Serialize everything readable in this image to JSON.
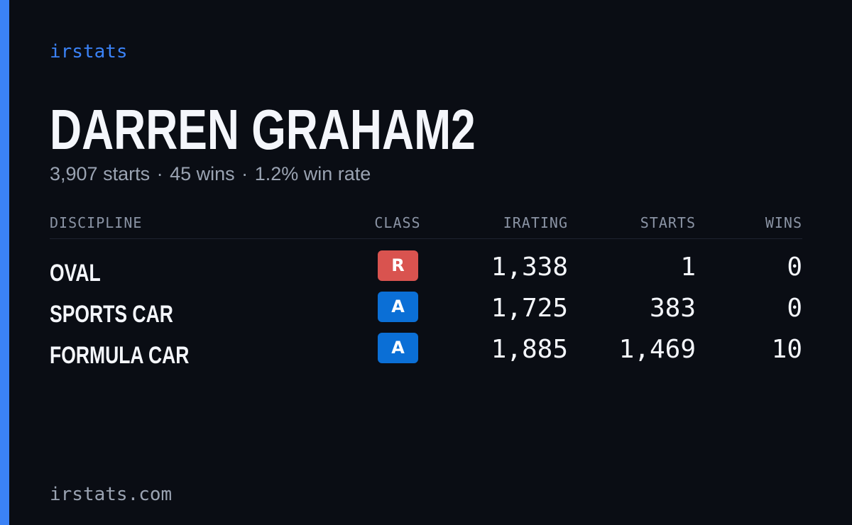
{
  "brand": "irstats",
  "driver": {
    "name": "DARREN GRAHAM2",
    "starts_text": "3,907 starts",
    "wins_text": "45 wins",
    "win_rate_text": "1.2% win rate",
    "separator": "·"
  },
  "table": {
    "headers": {
      "discipline": "DISCIPLINE",
      "class": "CLASS",
      "irating": "IRATING",
      "starts": "STARTS",
      "wins": "WINS"
    },
    "rows": [
      {
        "discipline": "OVAL",
        "class": "R",
        "class_color": "#d9534f",
        "irating": "1,338",
        "starts": "1",
        "wins": "0"
      },
      {
        "discipline": "SPORTS CAR",
        "class": "A",
        "class_color": "#0b6fd6",
        "irating": "1,725",
        "starts": "383",
        "wins": "0"
      },
      {
        "discipline": "FORMULA CAR",
        "class": "A",
        "class_color": "#0b6fd6",
        "irating": "1,885",
        "starts": "1,469",
        "wins": "10"
      }
    ]
  },
  "footer": "irstats.com",
  "colors": {
    "accent": "#3b82f6",
    "background": "#0a0d14",
    "text_primary": "#f4f6fb",
    "text_muted": "#9aa3b2"
  }
}
